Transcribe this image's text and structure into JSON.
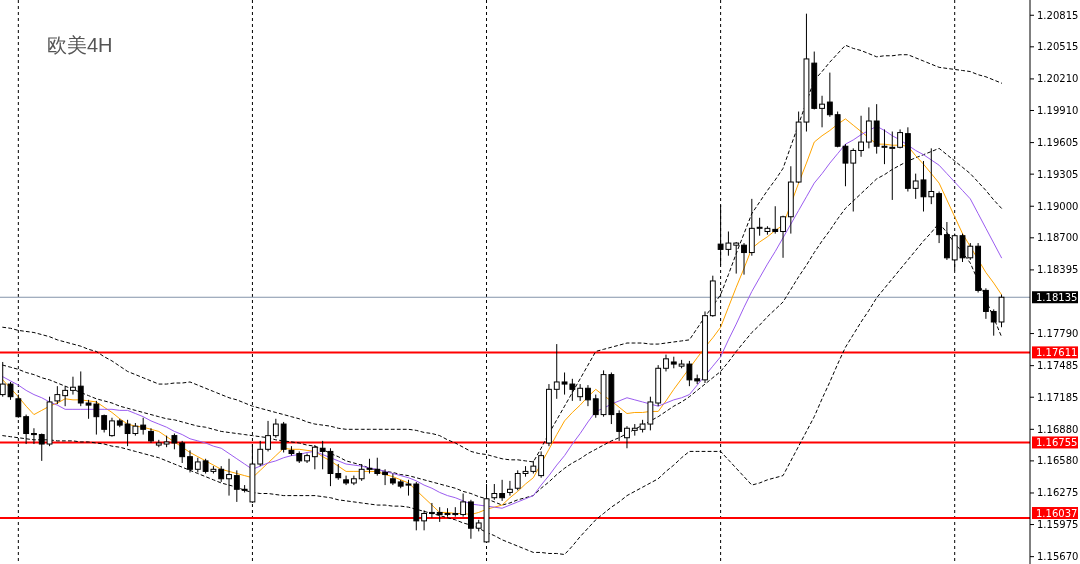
{
  "chart_data": {
    "type": "candlestick",
    "title": "欧美4H",
    "categories": [
      null,
      null,
      null,
      null,
      null,
      null,
      null,
      null,
      null,
      null,
      null,
      null,
      null,
      null,
      null,
      null,
      null,
      null,
      null,
      null,
      null,
      null,
      null,
      null,
      null,
      null,
      null,
      null,
      null,
      null,
      null,
      null,
      null,
      null,
      null,
      null,
      null,
      null,
      null,
      null,
      null,
      null,
      null,
      null,
      null,
      null,
      null,
      null,
      null,
      null,
      null,
      null,
      null,
      null,
      null,
      null,
      null,
      null,
      null,
      null,
      null,
      null,
      null,
      null,
      null,
      null,
      null,
      null,
      null,
      null,
      null,
      null,
      null,
      null,
      null,
      null,
      null,
      null,
      null,
      null,
      null,
      null,
      null,
      null,
      null,
      null,
      null,
      null,
      null,
      null,
      null,
      null,
      null,
      null,
      null,
      null,
      null,
      null,
      null,
      null,
      null,
      null,
      null,
      null,
      null,
      null,
      null,
      null,
      null,
      null,
      null,
      null,
      null,
      null,
      null,
      null,
      null,
      null,
      null,
      null,
      null,
      null,
      null,
      null,
      null,
      null,
      null,
      null,
      null
    ],
    "ohlc": [
      [
        1.1721,
        1.1752,
        1.1719,
        1.1731
      ],
      [
        1.1731,
        1.1733,
        1.1716,
        1.1719
      ],
      [
        1.1717,
        1.1721,
        1.1699,
        1.17
      ],
      [
        1.17,
        1.1702,
        1.1674,
        1.1684
      ],
      [
        1.1684,
        1.1689,
        1.1674,
        1.1683
      ],
      [
        1.1683,
        1.1684,
        1.1658,
        1.1674
      ],
      [
        1.1674,
        1.1719,
        1.1672,
        1.1714
      ],
      [
        1.1715,
        1.1729,
        1.1712,
        1.1721
      ],
      [
        1.172,
        1.1729,
        1.171,
        1.1725
      ],
      [
        1.1725,
        1.1738,
        1.1721,
        1.1728
      ],
      [
        1.1729,
        1.1743,
        1.171,
        1.1713
      ],
      [
        1.1713,
        1.1716,
        1.1698,
        1.1711
      ],
      [
        1.1712,
        1.1715,
        1.1683,
        1.17
      ],
      [
        1.1701,
        1.1702,
        1.1685,
        1.1688
      ],
      [
        1.1682,
        1.1699,
        1.1681,
        1.1696
      ],
      [
        1.1696,
        1.1698,
        1.169,
        1.1692
      ],
      [
        1.1693,
        1.1697,
        1.1672,
        1.1684
      ],
      [
        1.1684,
        1.1694,
        1.1682,
        1.1691
      ],
      [
        1.1692,
        1.1699,
        1.1683,
        1.1688
      ],
      [
        1.1686,
        1.1689,
        1.1675,
        1.1677
      ],
      [
        1.1673,
        1.1678,
        1.1671,
        1.1675
      ],
      [
        1.1674,
        1.1682,
        1.1671,
        1.1676
      ],
      [
        1.1682,
        1.1684,
        1.1669,
        1.1675
      ],
      [
        1.1675,
        1.1677,
        1.1656,
        1.1662
      ],
      [
        1.1662,
        1.1668,
        1.1647,
        1.165
      ],
      [
        1.165,
        1.1661,
        1.1647,
        1.1657
      ],
      [
        1.1658,
        1.166,
        1.1646,
        1.1648
      ],
      [
        1.1648,
        1.1653,
        1.1646,
        1.165
      ],
      [
        1.165,
        1.1653,
        1.1638,
        1.1641
      ],
      [
        1.1641,
        1.166,
        1.1625,
        1.1645
      ],
      [
        1.1644,
        1.1649,
        1.1619,
        1.1631
      ],
      [
        1.1631,
        1.1635,
        1.1628,
        1.163
      ],
      [
        1.1619,
        1.1674,
        1.1618,
        1.1655
      ],
      [
        1.1655,
        1.1677,
        1.1653,
        1.1669
      ],
      [
        1.1669,
        1.1696,
        1.1667,
        1.1682
      ],
      [
        1.1682,
        1.1698,
        1.168,
        1.1693
      ],
      [
        1.1693,
        1.1695,
        1.1666,
        1.1669
      ],
      [
        1.1668,
        1.1672,
        1.1663,
        1.1665
      ],
      [
        1.1665,
        1.1667,
        1.1656,
        1.1658
      ],
      [
        1.1658,
        1.1665,
        1.1656,
        1.1663
      ],
      [
        1.1662,
        1.1673,
        1.165,
        1.1671
      ],
      [
        1.167,
        1.1677,
        1.165,
        1.1667
      ],
      [
        1.1667,
        1.167,
        1.1634,
        1.1646
      ],
      [
        1.1646,
        1.1655,
        1.164,
        1.1642
      ],
      [
        1.164,
        1.1644,
        1.1635,
        1.1637
      ],
      [
        1.1637,
        1.1644,
        1.1635,
        1.1641
      ],
      [
        1.1641,
        1.1655,
        1.1639,
        1.165
      ],
      [
        1.1651,
        1.166,
        1.1646,
        1.165
      ],
      [
        1.165,
        1.1661,
        1.1644,
        1.1646
      ],
      [
        1.1647,
        1.165,
        1.1635,
        1.1645
      ],
      [
        1.1641,
        1.1646,
        1.1635,
        1.1637
      ],
      [
        1.1638,
        1.164,
        1.1632,
        1.1634
      ],
      [
        1.1636,
        1.164,
        1.1625,
        1.1635
      ],
      [
        1.1636,
        1.1638,
        1.1592,
        1.1601
      ],
      [
        1.1601,
        1.1611,
        1.1592,
        1.1608
      ],
      [
        1.1608,
        1.1618,
        1.1604,
        1.1609
      ],
      [
        1.1609,
        1.1614,
        1.16,
        1.1607
      ],
      [
        1.1607,
        1.1613,
        1.1605,
        1.1608
      ],
      [
        1.1607,
        1.1614,
        1.1605,
        1.1608
      ],
      [
        1.1607,
        1.1627,
        1.1605,
        1.1619
      ],
      [
        1.1619,
        1.1621,
        1.1584,
        1.1594
      ],
      [
        1.1594,
        1.1602,
        1.1591,
        1.1599
      ],
      [
        1.1581,
        1.1636,
        1.158,
        1.1622
      ],
      [
        1.1623,
        1.1636,
        1.1621,
        1.1627
      ],
      [
        1.1627,
        1.164,
        1.162,
        1.1623
      ],
      [
        1.1628,
        1.1639,
        1.1625,
        1.1631
      ],
      [
        1.1632,
        1.1649,
        1.163,
        1.1646
      ],
      [
        1.1646,
        1.1653,
        1.1643,
        1.1648
      ],
      [
        1.1648,
        1.1658,
        1.1646,
        1.1653
      ],
      [
        1.1644,
        1.1667,
        1.1642,
        1.1663
      ],
      [
        1.1675,
        1.1731,
        1.1672,
        1.1726
      ],
      [
        1.1726,
        1.1769,
        1.1717,
        1.1733
      ],
      [
        1.1733,
        1.1742,
        1.1721,
        1.1731
      ],
      [
        1.1731,
        1.1736,
        1.1715,
        1.1726
      ],
      [
        1.1719,
        1.1731,
        1.1715,
        1.1727
      ],
      [
        1.1727,
        1.173,
        1.171,
        1.1716
      ],
      [
        1.1717,
        1.1721,
        1.1699,
        1.1702
      ],
      [
        1.1702,
        1.1744,
        1.17,
        1.174
      ],
      [
        1.174,
        1.1742,
        1.1693,
        1.1702
      ],
      [
        1.1703,
        1.1706,
        1.1677,
        1.1686
      ],
      [
        1.168,
        1.1691,
        1.167,
        1.1689
      ],
      [
        1.1687,
        1.1693,
        1.1682,
        1.1689
      ],
      [
        1.1688,
        1.1697,
        1.1685,
        1.1693
      ],
      [
        1.1693,
        1.1719,
        1.1687,
        1.1714
      ],
      [
        1.1713,
        1.1749,
        1.171,
        1.1746
      ],
      [
        1.1746,
        1.1759,
        1.1743,
        1.1755
      ],
      [
        1.1752,
        1.1757,
        1.1746,
        1.175
      ],
      [
        1.1748,
        1.1754,
        1.1746,
        1.175
      ],
      [
        1.175,
        1.1753,
        1.1729,
        1.1735
      ],
      [
        1.1736,
        1.174,
        1.1731,
        1.1734
      ],
      [
        1.1735,
        1.18,
        1.1732,
        1.1796
      ],
      [
        1.1796,
        1.1834,
        1.1795,
        1.1829
      ],
      [
        1.1864,
        1.1901,
        1.1844,
        1.1859
      ],
      [
        1.1859,
        1.1876,
        1.1853,
        1.1865
      ],
      [
        1.1863,
        1.1866,
        1.1836,
        1.1865
      ],
      [
        1.1863,
        1.1865,
        1.1835,
        1.1856
      ],
      [
        1.1856,
        1.1907,
        1.1853,
        1.1879
      ],
      [
        1.1879,
        1.1889,
        1.1872,
        1.188
      ],
      [
        1.1876,
        1.1881,
        1.1873,
        1.1879
      ],
      [
        1.1878,
        1.19,
        1.1874,
        1.1876
      ],
      [
        1.1876,
        1.1891,
        1.1851,
        1.189
      ],
      [
        1.189,
        1.1938,
        1.1874,
        1.1923
      ],
      [
        1.1923,
        1.199,
        1.1922,
        1.198
      ],
      [
        1.198,
        1.2083,
        1.1971,
        1.204
      ],
      [
        1.2036,
        1.2047,
        1.1992,
        1.1993
      ],
      [
        1.1993,
        1.2005,
        1.1975,
        1.1997
      ],
      [
        1.1999,
        1.2027,
        1.1985,
        1.1987
      ],
      [
        1.1987,
        1.199,
        1.1956,
        1.1957
      ],
      [
        1.1957,
        1.1959,
        1.1919,
        1.1941
      ],
      [
        1.1941,
        1.1955,
        1.1895,
        1.1953
      ],
      [
        1.1953,
        1.1986,
        1.1947,
        1.1961
      ],
      [
        1.1961,
        1.1994,
        1.1955,
        1.1981
      ],
      [
        1.1981,
        1.1997,
        1.195,
        1.1957
      ],
      [
        1.1956,
        1.1973,
        1.194,
        1.1957
      ],
      [
        1.1955,
        1.1971,
        1.1906,
        1.1956
      ],
      [
        1.1956,
        1.1973,
        1.1955,
        1.197
      ],
      [
        1.1969,
        1.1975,
        1.1914,
        1.1917
      ],
      [
        1.1917,
        1.1931,
        1.1907,
        1.1924
      ],
      [
        1.1925,
        1.1943,
        1.1895,
        1.1909
      ],
      [
        1.1909,
        1.1955,
        1.1902,
        1.1914
      ],
      [
        1.1912,
        1.1914,
        1.1865,
        1.1873
      ],
      [
        1.1873,
        1.1885,
        1.1849,
        1.1851
      ],
      [
        1.1849,
        1.1874,
        1.1839,
        1.1872
      ],
      [
        1.1872,
        1.1874,
        1.1847,
        1.1851
      ],
      [
        1.1851,
        1.1865,
        1.1849,
        1.1862
      ],
      [
        1.1862,
        1.1865,
        1.1818,
        1.182
      ],
      [
        1.182,
        1.1822,
        1.1793,
        1.18
      ],
      [
        1.18,
        1.1802,
        1.1777,
        1.179
      ],
      [
        1.179,
        1.1816,
        1.1785,
        1.18135
      ]
    ],
    "series": [
      {
        "type": "line",
        "color": "#000000",
        "line_style": "dashed",
        "values": [
          1.1785,
          1.1784,
          1.1782,
          1.1781,
          1.178,
          1.1778,
          1.1776,
          1.1773,
          1.1771,
          1.1769,
          1.1767,
          1.1764,
          1.1762,
          1.1757,
          1.1753,
          1.1748,
          1.1743,
          1.174,
          1.1737,
          1.1734,
          1.1731,
          1.1731,
          1.1732,
          1.1732,
          1.1733,
          1.173,
          1.1727,
          1.1724,
          1.1721,
          1.1718,
          1.1716,
          1.1713,
          1.171,
          1.1708,
          1.1706,
          1.1704,
          1.1702,
          1.17,
          1.1698,
          1.1695,
          1.1693,
          1.1692,
          1.1691,
          1.1689,
          1.1688,
          1.1688,
          1.1688,
          1.1688,
          1.1688,
          1.1688,
          1.1688,
          1.1688,
          1.1688,
          1.1687,
          1.1685,
          1.1684,
          1.1682,
          1.1678,
          1.1675,
          1.1671,
          1.1667,
          1.1665,
          1.1664,
          1.1662,
          1.166,
          1.1659,
          1.1659,
          1.1658,
          1.1657,
          1.167,
          1.1684,
          1.1697,
          1.171,
          1.1723,
          1.1736,
          1.1749,
          1.1762,
          1.1764,
          1.1766,
          1.1768,
          1.177,
          1.177,
          1.177,
          1.1769,
          1.1769,
          1.177,
          1.1771,
          1.1772,
          1.1773,
          1.1784,
          1.1795,
          1.1805,
          1.1816,
          1.1835,
          1.1855,
          1.1874,
          1.1893,
          1.1904,
          1.1915,
          1.1925,
          1.1936,
          1.1957,
          1.1978,
          1.1999,
          1.202,
          1.2028,
          1.2037,
          1.2045,
          1.2053,
          1.205,
          1.2048,
          1.2045,
          1.2042,
          1.2043,
          1.2043,
          1.2044,
          1.2044,
          1.2041,
          1.2038,
          1.2035,
          1.2032,
          1.2031,
          1.203,
          1.2029,
          1.2028,
          1.2025,
          1.2023,
          1.202,
          1.2017
        ]
      },
      {
        "type": "line",
        "color": "#000000",
        "line_style": "dashed",
        "values": [
          1.1749,
          1.1747,
          1.1745,
          1.1742,
          1.174,
          1.1737,
          1.1735,
          1.1732,
          1.1729,
          1.1726,
          1.1723,
          1.172,
          1.1717,
          1.1715,
          1.1713,
          1.171,
          1.1708,
          1.1706,
          1.1704,
          1.1702,
          1.17,
          1.1698,
          1.1697,
          1.1695,
          1.1693,
          1.1691,
          1.169,
          1.1688,
          1.1686,
          1.1685,
          1.1684,
          1.1683,
          1.1682,
          1.1681,
          1.168,
          1.1678,
          1.1677,
          1.1676,
          1.1675,
          1.1673,
          1.1672,
          1.1669,
          1.1665,
          1.1662,
          1.1658,
          1.1656,
          1.1654,
          1.1651,
          1.1649,
          1.1648,
          1.1647,
          1.1645,
          1.1644,
          1.1642,
          1.164,
          1.1638,
          1.1636,
          1.1634,
          1.1632,
          1.1629,
          1.1627,
          1.1624,
          1.1622,
          1.1619,
          1.1616,
          1.1618,
          1.1621,
          1.1623,
          1.1625,
          1.1632,
          1.1638,
          1.1645,
          1.1651,
          1.1656,
          1.166,
          1.1665,
          1.1669,
          1.1673,
          1.1677,
          1.168,
          1.1684,
          1.1688,
          1.1692,
          1.1696,
          1.17,
          1.1705,
          1.171,
          1.1714,
          1.1719,
          1.1725,
          1.1731,
          1.1737,
          1.1743,
          1.1752,
          1.1762,
          1.1771,
          1.178,
          1.1787,
          1.1795,
          1.1802,
          1.1809,
          1.1821,
          1.1833,
          1.1844,
          1.1856,
          1.1867,
          1.1877,
          1.1888,
          1.1898,
          1.1905,
          1.1912,
          1.1919,
          1.1926,
          1.193,
          1.1935,
          1.1939,
          1.1943,
          1.1946,
          1.1949,
          1.1952,
          1.1955,
          1.1949,
          1.1943,
          1.1937,
          1.1931,
          1.1923,
          1.1915,
          1.1906,
          1.1898
        ]
      },
      {
        "type": "line",
        "color": "#000000",
        "line_style": "dashed",
        "values": [
          1.1682,
          1.1681,
          1.168,
          1.1679,
          1.1678,
          1.1678,
          1.1678,
          1.1677,
          1.1677,
          1.1677,
          1.1676,
          1.1676,
          1.1675,
          1.1674,
          1.1672,
          1.1671,
          1.1669,
          1.1667,
          1.1665,
          1.1663,
          1.1661,
          1.1658,
          1.1655,
          1.1652,
          1.1649,
          1.1646,
          1.1643,
          1.164,
          1.1637,
          1.1635,
          1.1633,
          1.163,
          1.1628,
          1.1627,
          1.1627,
          1.1626,
          1.1625,
          1.1625,
          1.1625,
          1.1625,
          1.1625,
          1.1624,
          1.1623,
          1.1621,
          1.162,
          1.1619,
          1.1618,
          1.1617,
          1.1616,
          1.1616,
          1.1615,
          1.1615,
          1.1614,
          1.1612,
          1.161,
          1.1608,
          1.1606,
          1.1604,
          1.1602,
          1.1599,
          1.1597,
          1.1594,
          1.159,
          1.1587,
          1.1583,
          1.158,
          1.1577,
          1.1574,
          1.1571,
          1.1571,
          1.157,
          1.157,
          1.1569,
          1.1577,
          1.1586,
          1.1594,
          1.1602,
          1.1608,
          1.1614,
          1.1619,
          1.1625,
          1.1629,
          1.1633,
          1.1637,
          1.1641,
          1.1648,
          1.1654,
          1.1661,
          1.1667,
          1.1667,
          1.1667,
          1.1667,
          1.1667,
          1.1659,
          1.1651,
          1.1643,
          1.1635,
          1.1637,
          1.164,
          1.1642,
          1.1644,
          1.1658,
          1.1672,
          1.1686,
          1.17,
          1.1717,
          1.1733,
          1.175,
          1.1766,
          1.1778,
          1.179,
          1.1801,
          1.1813,
          1.1822,
          1.1831,
          1.184,
          1.1849,
          1.1858,
          1.1867,
          1.1875,
          1.1884,
          1.1875,
          1.1865,
          1.1856,
          1.1846,
          1.1829,
          1.1811,
          1.1794,
          1.1776
        ]
      },
      {
        "type": "line",
        "color": "#ffa500",
        "line_style": "solid",
        "values": [
          1.1735,
          1.1727,
          1.1719,
          1.171,
          1.1702,
          1.1706,
          1.171,
          1.1713,
          1.1717,
          1.1716,
          1.1716,
          1.1715,
          1.1714,
          1.1709,
          1.1704,
          1.1698,
          1.1693,
          1.1691,
          1.169,
          1.1688,
          1.1686,
          1.1681,
          1.1676,
          1.1671,
          1.1666,
          1.1662,
          1.1658,
          1.1654,
          1.165,
          1.1648,
          1.1646,
          1.1644,
          1.1642,
          1.1649,
          1.1656,
          1.1663,
          1.167,
          1.1669,
          1.1669,
          1.1668,
          1.1667,
          1.1662,
          1.1658,
          1.1653,
          1.1648,
          1.1648,
          1.1648,
          1.1648,
          1.1648,
          1.1645,
          1.1643,
          1.164,
          1.1637,
          1.163,
          1.1623,
          1.1616,
          1.1609,
          1.1609,
          1.1608,
          1.1608,
          1.1607,
          1.1609,
          1.1612,
          1.1614,
          1.1616,
          1.1623,
          1.1629,
          1.1636,
          1.1642,
          null,
          1.1669,
          1.1683,
          1.1696,
          1.1704,
          1.1711,
          1.1719,
          1.1726,
          1.172,
          1.1715,
          1.1709,
          1.1703,
          1.1704,
          1.1704,
          1.1705,
          1.1705,
          1.1715,
          1.1726,
          1.1736,
          1.1746,
          1.1756,
          1.1766,
          1.1775,
          1.1785,
          1.1804,
          1.1823,
          1.1841,
          1.186,
          1.1866,
          1.1871,
          1.1877,
          1.1882,
          null,
          1.1922,
          1.1941,
          1.1961,
          1.1967,
          1.1972,
          1.1978,
          1.1983,
          1.1977,
          1.1971,
          1.1965,
          1.1959,
          1.1959,
          1.1958,
          1.1958,
          1.1957,
          1.1948,
          1.194,
          1.1931,
          1.1922,
          1.1906,
          1.189,
          1.1874,
          null,
          null,
          1.1837,
          1.1827,
          1.1816
        ]
      },
      {
        "type": "line",
        "color": "#9b5cf0",
        "line_style": "solid",
        "values": [
          1.1738,
          1.1734,
          1.173,
          1.1725,
          1.1721,
          1.1718,
          1.1714,
          1.1711,
          1.1707,
          1.1707,
          1.1707,
          1.1707,
          1.1707,
          1.1707,
          1.1707,
          1.1706,
          1.1706,
          1.1703,
          1.17,
          1.1696,
          1.1693,
          1.169,
          1.1686,
          1.1683,
          1.1679,
          1.1677,
          1.1675,
          1.1672,
          1.167,
          1.1665,
          1.166,
          1.1655,
          1.165,
          1.1653,
          1.1656,
          1.1658,
          1.1661,
          1.1663,
          1.1664,
          1.1666,
          1.1667,
          1.1664,
          1.1661,
          1.1658,
          1.1655,
          1.1654,
          1.1653,
          1.1651,
          1.165,
          1.1648,
          1.1646,
          1.1644,
          1.1642,
          1.1639,
          1.1635,
          1.1632,
          1.1628,
          1.1625,
          1.1623,
          1.162,
          1.1617,
          1.1616,
          1.1615,
          1.1614,
          1.1613,
          1.1616,
          1.1619,
          1.1622,
          1.1625,
          1.1635,
          1.1644,
          1.1654,
          1.1663,
          1.1674,
          1.1684,
          1.1695,
          1.1705,
          1.1708,
          1.1712,
          1.1715,
          1.1718,
          1.1716,
          1.1714,
          1.1712,
          1.171,
          1.1713,
          1.1716,
          1.1718,
          1.1721,
          1.173,
          1.1739,
          1.1748,
          1.1757,
          1.1773,
          1.1788,
          1.1804,
          1.1819,
          1.1832,
          1.1845,
          1.1857,
          1.187,
          1.1883,
          1.1896,
          1.1909,
          1.1922,
          1.1931,
          1.1941,
          1.195,
          1.1959,
          1.1963,
          1.1968,
          1.1972,
          1.1976,
          1.1972,
          1.1967,
          1.1963,
          1.1958,
          1.1953,
          1.1949,
          1.1944,
          1.1939,
          1.1931,
          1.1923,
          1.1915,
          1.1907,
          1.1893,
          1.1879,
          1.1865,
          1.1851
        ]
      }
    ],
    "ylim": [
      1.156,
      1.2096
    ],
    "yticks": [
      1.20815,
      1.20515,
      {
        "value": 1.2021,
        "label": "1.20210"
      },
      {
        "value": 1.1991,
        "label": "1.19910"
      },
      1.19605,
      1.19305,
      {
        "value": 1.19,
        "label": "1.19000"
      },
      {
        "value": 1.187,
        "label": "1.18700"
      },
      1.18395,
      {
        "value": 1.1779,
        "label": "1.17790"
      },
      1.17485,
      1.17185,
      {
        "value": 1.1688,
        "label": "1.16880"
      },
      {
        "value": 1.1658,
        "label": "1.16580"
      },
      1.16275,
      1.15975,
      {
        "value": 1.1567,
        "label": "1.15670"
      }
    ],
    "tick_labels": "y",
    "ref_lines": [
      {
        "axis": "y",
        "value": 1.18135,
        "label": "1.18135",
        "color": "#8494aa"
      },
      {
        "axis": "y",
        "value": 1.17611,
        "label": "1.17611",
        "color": "#ff0000"
      },
      {
        "axis": "y",
        "value": 1.16755,
        "label": "1.16755",
        "color": "#ff0000"
      },
      {
        "axis": "y",
        "value": 1.16037,
        "label": "1.16037",
        "color": "#ff0000"
      }
    ]
  }
}
